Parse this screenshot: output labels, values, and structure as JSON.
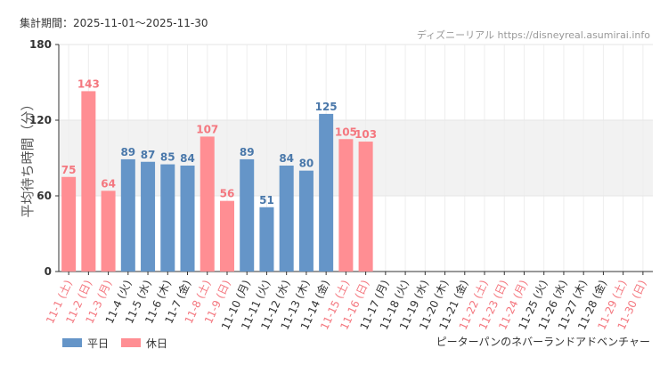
{
  "chart_data": {
    "type": "bar",
    "title": "集計期間：2025-11-01〜2025-11-30",
    "source": "ディズニーリアル https://disneyreal.asumirai.info",
    "subtitle": "ピーターパンのネバーランドアドベンチャー",
    "y_label": "平均待ち時間（分）",
    "categories": [
      "11-1 (土)",
      "11-2 (日)",
      "11-3 (月)",
      "11-4 (火)",
      "11-5 (水)",
      "11-6 (木)",
      "11-7 (金)",
      "11-8 (土)",
      "11-9 (日)",
      "11-10 (月)",
      "11-11 (火)",
      "11-12 (水)",
      "11-13 (木)",
      "11-14 (金)",
      "11-15 (土)",
      "11-16 (日)",
      "11-17 (月)",
      "11-18 (火)",
      "11-19 (水)",
      "11-20 (木)",
      "11-21 (金)",
      "11-22 (土)",
      "11-23 (日)",
      "11-24 (月)",
      "11-25 (火)",
      "11-26 (水)",
      "11-27 (木)",
      "11-28 (金)",
      "11-29 (土)",
      "11-30 (日)"
    ],
    "category_colors": [
      "#f4777f",
      "#f4777f",
      "#f4777f",
      "#333333",
      "#333333",
      "#333333",
      "#333333",
      "#f4777f",
      "#f4777f",
      "#333333",
      "#333333",
      "#333333",
      "#333333",
      "#333333",
      "#f4777f",
      "#f4777f",
      "#333333",
      "#333333",
      "#333333",
      "#333333",
      "#333333",
      "#f4777f",
      "#f4777f",
      "#f4777f",
      "#333333",
      "#333333",
      "#333333",
      "#333333",
      "#f4777f",
      "#f4777f"
    ],
    "series": [
      {
        "name": "平日",
        "color": "#6595c8",
        "label_color": "#4a78aa",
        "values": [
          null,
          null,
          null,
          89,
          87,
          85,
          84,
          null,
          null,
          89,
          51,
          84,
          80,
          125,
          null,
          null,
          null,
          null,
          null,
          null,
          null,
          null,
          null,
          null,
          null,
          null,
          null,
          null,
          null,
          null
        ]
      },
      {
        "name": "休日",
        "color": "#ff8e93",
        "label_color": "#f4777f",
        "values": [
          75,
          143,
          64,
          null,
          null,
          null,
          null,
          107,
          56,
          null,
          null,
          null,
          null,
          null,
          105,
          103,
          null,
          null,
          null,
          null,
          null,
          null,
          null,
          null,
          null,
          null,
          null,
          null,
          null,
          null
        ]
      }
    ],
    "ylim": [
      0,
      180
    ],
    "yticks": [
      0,
      60,
      120,
      180
    ],
    "shaded_band": [
      60,
      120
    ],
    "grid": true
  }
}
